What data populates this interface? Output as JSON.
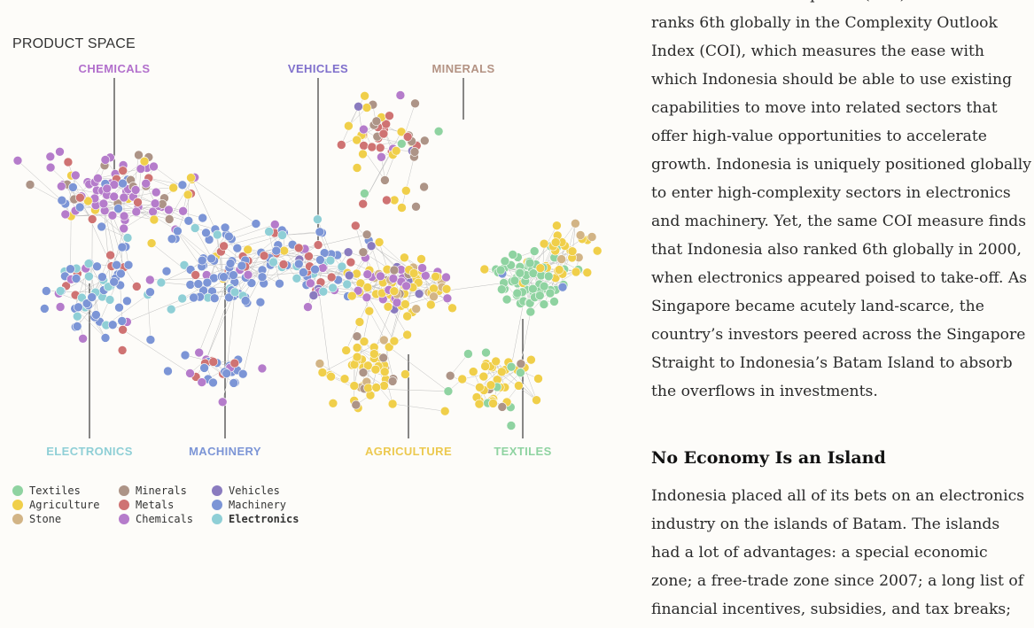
{
  "viz": {
    "title": "PRODUCT SPACE",
    "categories": [
      {
        "key": "chemicals",
        "label": "CHEMICALS",
        "color": "#b26fcc"
      },
      {
        "key": "vehicles",
        "label": "VEHICLES",
        "color": "#7f6fcc"
      },
      {
        "key": "minerals",
        "label": "MINERALS",
        "color": "#b49384"
      },
      {
        "key": "electronics",
        "label": "ELECTRONICS",
        "color": "#8fcfd6"
      },
      {
        "key": "machinery",
        "label": "MACHINERY",
        "color": "#7c95d6"
      },
      {
        "key": "agriculture",
        "label": "AGRICULTURE",
        "color": "#ecc94f"
      },
      {
        "key": "textiles",
        "label": "TEXTILES",
        "color": "#8fd3a1"
      }
    ],
    "legend": [
      {
        "label": "Textiles",
        "color": "#8fd3a1"
      },
      {
        "label": "Agriculture",
        "color": "#f0cf4a"
      },
      {
        "label": "Stone",
        "color": "#d2b486"
      },
      {
        "label": "Minerals",
        "color": "#ad9487"
      },
      {
        "label": "Metals",
        "color": "#cf7373"
      },
      {
        "label": "Chemicals",
        "color": "#b57ccb"
      },
      {
        "label": "Vehicles",
        "color": "#8a7bbf"
      },
      {
        "label": "Machinery",
        "color": "#7c95d6"
      },
      {
        "label": "Electronics",
        "color": "#8fcfd6",
        "active": true
      }
    ]
  },
  "article": {
    "cut_line": "International Development (CID) finds that Indonesia",
    "paragraph1": "ranks 6th globally in the Complexity Outlook Index (COI), which measures the ease with which Indonesia should be able to use existing capabilities to move into related sectors that offer high-value opportunities to accelerate growth. Indonesia is uniquely positioned globally to enter high-complexity sectors in electronics and machinery. Yet, the same COI measure finds that Indonesia also ranked 6th globally in 2000, when electronics appeared poised to take-off. As Singapore became acutely land-scarce, the country’s investors peered across the Singapore Straight to Indonesia’s Batam Island to absorb the overflows in investments.",
    "heading": "No Economy Is an Island",
    "paragraph2": "Indonesia placed all of its bets on an electronics industry on the islands of Batam. The islands had a lot of advantages: a special economic zone; a free-trade zone since 2007; a long list of financial incentives, subsidies, and tax breaks;"
  }
}
